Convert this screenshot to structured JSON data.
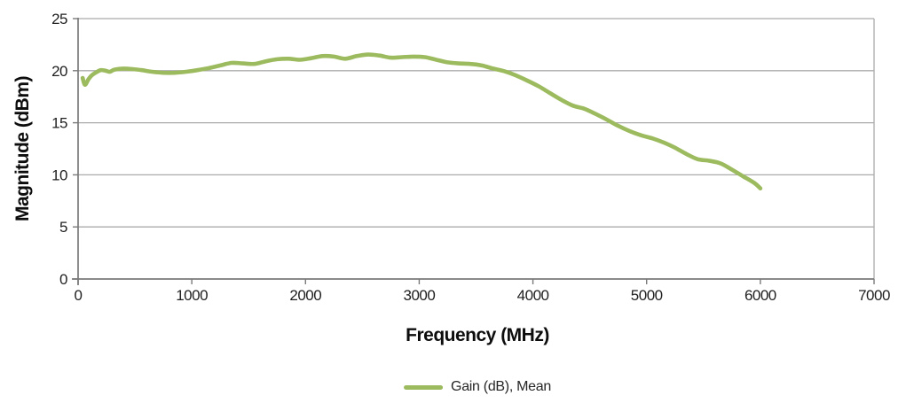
{
  "chart_data": {
    "type": "line",
    "title": "",
    "xlabel": "Frequency (MHz)",
    "ylabel": "Magnitude (dBm)",
    "xlim": [
      0,
      7000
    ],
    "ylim": [
      0,
      25
    ],
    "x_ticks": [
      0,
      1000,
      2000,
      3000,
      4000,
      5000,
      6000,
      7000
    ],
    "y_ticks": [
      0,
      5,
      10,
      15,
      20,
      25
    ],
    "grid": "horizontal",
    "legend": {
      "position": "bottom-center",
      "entries": [
        {
          "label": "Gain (dB), Mean",
          "color": "#9CBA5E"
        }
      ]
    },
    "series": [
      {
        "name": "Gain (dB), Mean",
        "color": "#9CBA5E",
        "points": [
          [
            40,
            19.3
          ],
          [
            60,
            18.65
          ],
          [
            90,
            19.15
          ],
          [
            120,
            19.55
          ],
          [
            160,
            19.85
          ],
          [
            200,
            20.05
          ],
          [
            240,
            20.0
          ],
          [
            280,
            19.9
          ],
          [
            320,
            20.1
          ],
          [
            400,
            20.2
          ],
          [
            480,
            20.15
          ],
          [
            560,
            20.05
          ],
          [
            650,
            19.9
          ],
          [
            750,
            19.8
          ],
          [
            850,
            19.8
          ],
          [
            950,
            19.9
          ],
          [
            1050,
            20.05
          ],
          [
            1150,
            20.25
          ],
          [
            1250,
            20.5
          ],
          [
            1350,
            20.75
          ],
          [
            1450,
            20.7
          ],
          [
            1550,
            20.65
          ],
          [
            1650,
            20.9
          ],
          [
            1750,
            21.1
          ],
          [
            1850,
            21.15
          ],
          [
            1950,
            21.05
          ],
          [
            2050,
            21.2
          ],
          [
            2150,
            21.4
          ],
          [
            2250,
            21.35
          ],
          [
            2350,
            21.15
          ],
          [
            2450,
            21.4
          ],
          [
            2550,
            21.55
          ],
          [
            2650,
            21.45
          ],
          [
            2750,
            21.25
          ],
          [
            2850,
            21.3
          ],
          [
            2950,
            21.35
          ],
          [
            3050,
            21.3
          ],
          [
            3150,
            21.05
          ],
          [
            3250,
            20.8
          ],
          [
            3350,
            20.7
          ],
          [
            3450,
            20.65
          ],
          [
            3550,
            20.5
          ],
          [
            3650,
            20.2
          ],
          [
            3750,
            19.95
          ],
          [
            3850,
            19.55
          ],
          [
            3950,
            19.05
          ],
          [
            4050,
            18.5
          ],
          [
            4150,
            17.85
          ],
          [
            4250,
            17.2
          ],
          [
            4350,
            16.65
          ],
          [
            4450,
            16.35
          ],
          [
            4550,
            15.85
          ],
          [
            4650,
            15.3
          ],
          [
            4750,
            14.7
          ],
          [
            4850,
            14.2
          ],
          [
            4950,
            13.8
          ],
          [
            5050,
            13.5
          ],
          [
            5150,
            13.1
          ],
          [
            5250,
            12.6
          ],
          [
            5350,
            12.0
          ],
          [
            5450,
            11.5
          ],
          [
            5550,
            11.35
          ],
          [
            5650,
            11.1
          ],
          [
            5750,
            10.5
          ],
          [
            5850,
            9.85
          ],
          [
            5950,
            9.2
          ],
          [
            6000,
            8.7
          ]
        ]
      }
    ]
  },
  "colors": {
    "background": "#FFFFFF",
    "line": "#9CBA5E",
    "grid": "#ABABAB",
    "axis": "#7A7A7A",
    "tick_text": "#1F1F1F",
    "title_text": "#0D0D0D"
  }
}
